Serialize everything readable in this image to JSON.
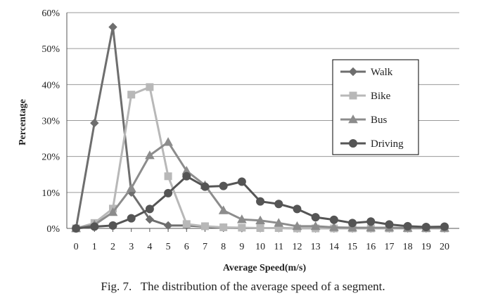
{
  "chart_data": {
    "type": "line",
    "xlabel": "Average Speed(m/s)",
    "ylabel": "Percentage",
    "x": [
      0,
      1,
      2,
      3,
      4,
      5,
      6,
      7,
      8,
      9,
      10,
      11,
      12,
      13,
      14,
      15,
      16,
      17,
      18,
      19,
      20
    ],
    "ylim": [
      0,
      60
    ],
    "yticks": [
      "0%",
      "10%",
      "20%",
      "30%",
      "40%",
      "50%",
      "60%"
    ],
    "grid": true,
    "legend_position": "right",
    "series": [
      {
        "name": "Walk",
        "color": "#6e6e6e",
        "marker": "diamond",
        "values": [
          0,
          29.3,
          56,
          10,
          2.5,
          0.8,
          0.8,
          0.5,
          0.2,
          0.1,
          0.1,
          0.1,
          0,
          0,
          0,
          0,
          0,
          0,
          0,
          0,
          0
        ]
      },
      {
        "name": "Bike",
        "color": "#b8b8b8",
        "marker": "square",
        "values": [
          0,
          1.5,
          5.5,
          37.2,
          39.3,
          14.5,
          1.2,
          0.6,
          0.3,
          0.2,
          0.1,
          0.1,
          0,
          0,
          0,
          0,
          0,
          0,
          0,
          0,
          0
        ]
      },
      {
        "name": "Bus",
        "color": "#8c8c8c",
        "marker": "triangle",
        "values": [
          0,
          1,
          4.5,
          11.2,
          20.3,
          24,
          16,
          12,
          5,
          2.5,
          2.2,
          1.5,
          0.6,
          0.6,
          0.3,
          0.2,
          0.2,
          0.2,
          0.1,
          0.1,
          0.1
        ]
      },
      {
        "name": "Driving",
        "color": "#555555",
        "marker": "circle",
        "values": [
          0,
          0.5,
          0.8,
          2.8,
          5.4,
          9.8,
          14.5,
          11.6,
          11.8,
          13,
          7.5,
          6.8,
          5.4,
          3.1,
          2.4,
          1.5,
          1.9,
          1.1,
          0.6,
          0.4,
          0.5
        ]
      }
    ]
  },
  "caption": "Fig. 7.   The distribution of the average speed of a segment."
}
